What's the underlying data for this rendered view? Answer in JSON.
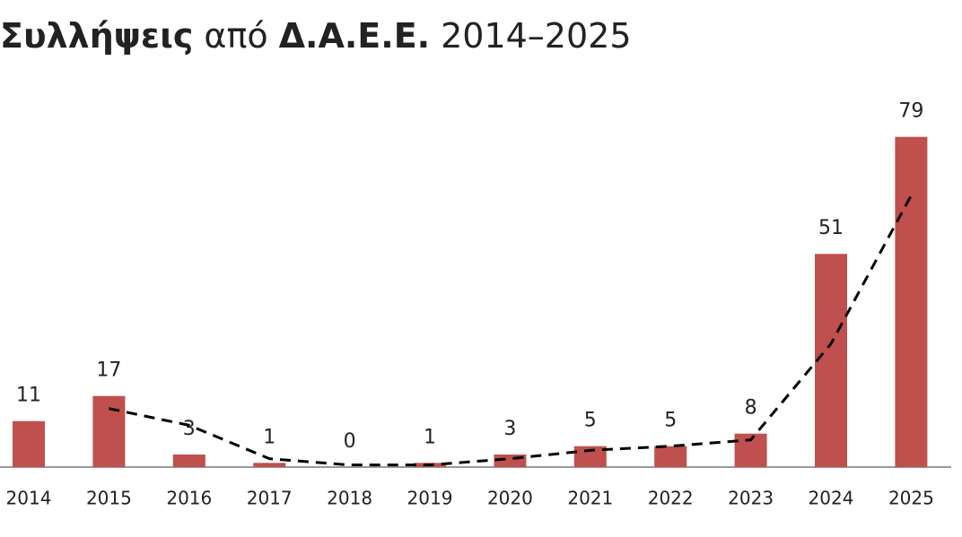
{
  "chart_data": {
    "type": "bar",
    "title_parts": [
      {
        "text": "Συλλήψεις",
        "bold": true
      },
      {
        "text": "από",
        "bold": false
      },
      {
        "text": "Δ.Α.Ε.Ε.",
        "bold": true
      },
      {
        "text": "2014–2025",
        "bold": false
      }
    ],
    "categories": [
      "2014",
      "2015",
      "2016",
      "2017",
      "2018",
      "2019",
      "2020",
      "2021",
      "2022",
      "2023",
      "2024",
      "2025"
    ],
    "values": [
      11,
      17,
      3,
      1,
      0,
      1,
      3,
      5,
      5,
      8,
      51,
      79
    ],
    "color": "#c0504d",
    "trend": {
      "values": [
        null,
        14,
        10,
        2,
        0.5,
        0.5,
        2,
        4,
        5,
        6.5,
        29.5,
        65
      ],
      "color": "#000000",
      "dashed": true
    },
    "ylim": [
      0,
      80
    ]
  }
}
